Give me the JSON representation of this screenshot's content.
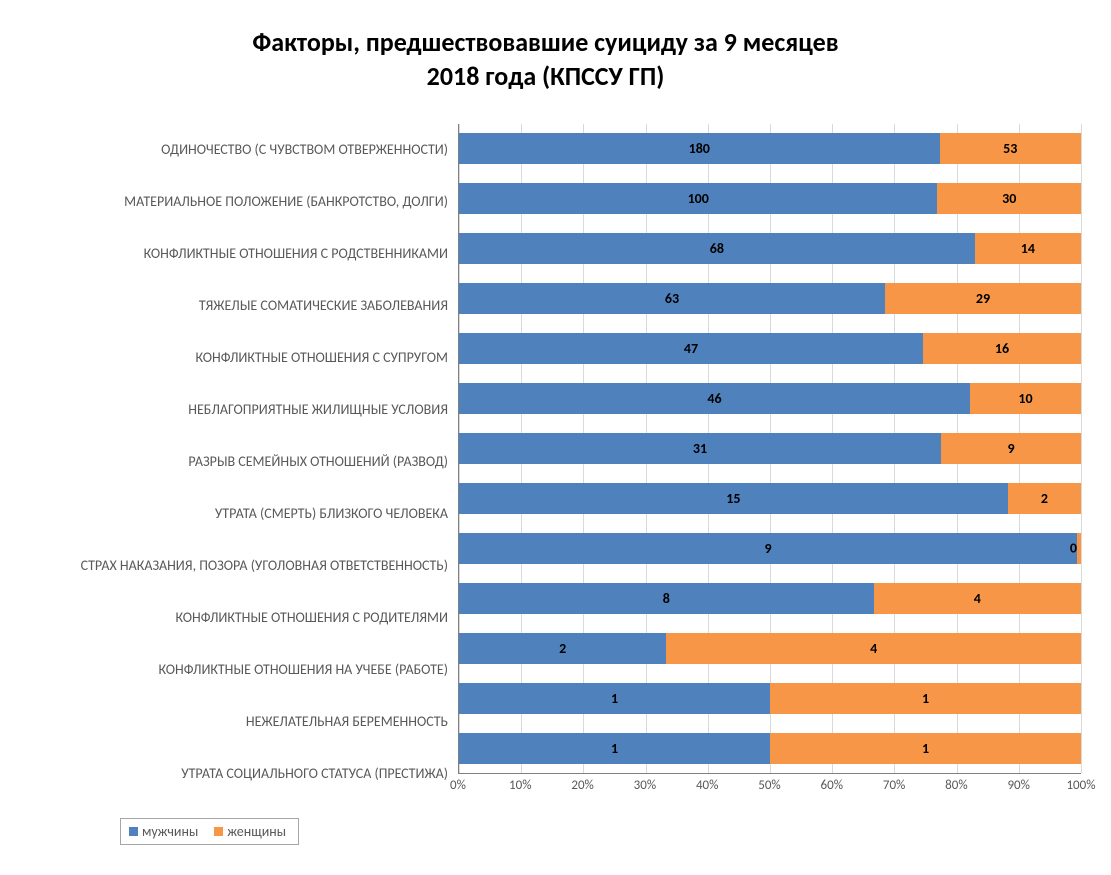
{
  "chart": {
    "type": "bar-stacked-100",
    "title": "Факторы, предшествовавшие суициду за 9 месяцев\n2018 года (КПССУ ГП)",
    "title_fontsize": 26,
    "label_fontsize": 14,
    "tick_fontsize": 13,
    "datalabel_fontsize": 14,
    "background_color": "#ffffff",
    "grid_color": "#d9d9d9",
    "axis_color": "#808080",
    "text_color": "#595959",
    "bar_thickness_ratio": 0.62,
    "categories": [
      "УТРАТА СОЦИАЛЬНОГО СТАТУСА (ПРЕСТИЖА)",
      "НЕЖЕЛАТЕЛЬНАЯ БЕРЕМЕННОСТЬ",
      "КОНФЛИКТНЫЕ ОТНОШЕНИЯ НА УЧЕБЕ (РАБОТЕ)",
      "КОНФЛИКТНЫЕ ОТНОШЕНИЯ С РОДИТЕЛЯМИ",
      "СТРАХ НАКАЗАНИЯ, ПОЗОРА (УГОЛОВНАЯ ОТВЕТСТВЕННОСТЬ)",
      "УТРАТА (СМЕРТЬ) БЛИЗКОГО ЧЕЛОВЕКА",
      "РАЗРЫВ СЕМЕЙНЫХ ОТНОШЕНИЙ (РАЗВОД)",
      "НЕБЛАГОПРИЯТНЫЕ ЖИЛИЩНЫЕ УСЛОВИЯ",
      "КОНФЛИКТНЫЕ ОТНОШЕНИЯ С СУПРУГОМ",
      "ТЯЖЕЛЫЕ СОМАТИЧЕСКИЕ ЗАБОЛЕВАНИЯ",
      "КОНФЛИКТНЫЕ ОТНОШЕНИЯ С РОДСТВЕННИКАМИ",
      "МАТЕРИАЛЬНОЕ ПОЛОЖЕНИЕ (БАНКРОТСТВО, ДОЛГИ)",
      "ОДИНОЧЕСТВО  (С ЧУВСТВОМ ОТВЕРЖЕННОСТИ)"
    ],
    "series": [
      {
        "name": "мужчины",
        "color": "#4f81bd",
        "values": [
          1,
          1,
          2,
          8,
          9,
          15,
          31,
          46,
          47,
          63,
          68,
          100,
          180
        ]
      },
      {
        "name": "женщины",
        "color": "#f79646",
        "values": [
          1,
          1,
          4,
          4,
          0,
          2,
          9,
          10,
          16,
          29,
          14,
          30,
          53
        ]
      }
    ],
    "x_axis": {
      "min": 0,
      "max": 100,
      "tick_step": 10,
      "suffix": "%",
      "ticks": [
        "0%",
        "10%",
        "20%",
        "30%",
        "40%",
        "50%",
        "60%",
        "70%",
        "80%",
        "90%",
        "100%"
      ]
    },
    "legend": {
      "position": "bottom-left",
      "border_color": "#a6a6a6",
      "items": [
        "мужчины",
        "женщины"
      ]
    }
  }
}
